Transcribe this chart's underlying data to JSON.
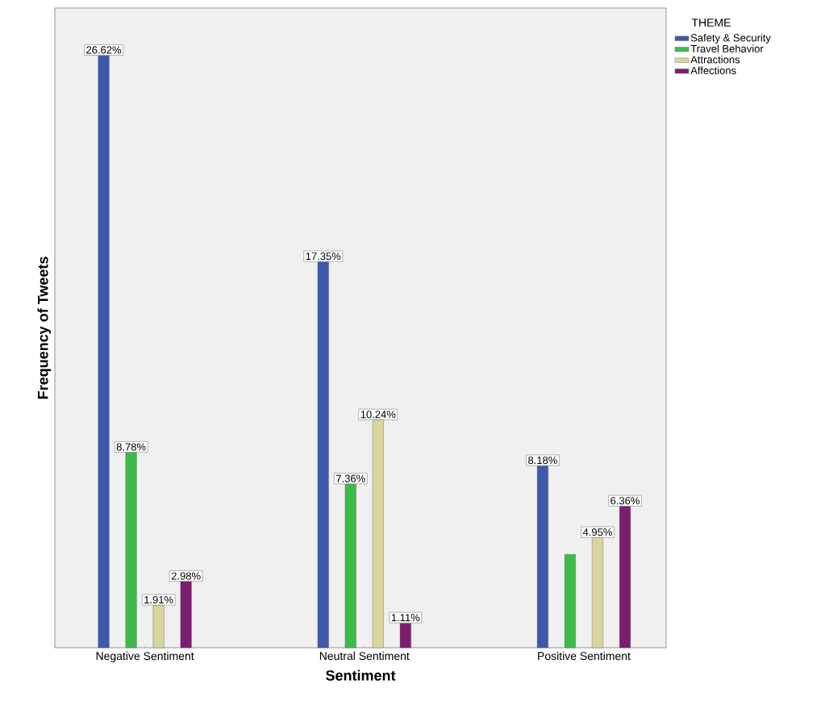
{
  "chart_data": {
    "type": "bar",
    "xlabel": "Sentiment",
    "ylabel": "Frequency of Tweets",
    "legend_title": "THEME",
    "legend": "top right",
    "tick_labels": "x",
    "categories": [
      "Negative Sentiment",
      "Neutral Sentiment",
      "Positive Sentiment"
    ],
    "series": [
      {
        "name": "Safety & Security",
        "color": "#3e58ac",
        "values": [
          26.62,
          17.35,
          8.18
        ],
        "value_labels": [
          "26.62%",
          "17.35%",
          "8.18%"
        ]
      },
      {
        "name": "Travel Behavior",
        "color": "#3dbb4a",
        "values": [
          8.78,
          7.36,
          4.2
        ],
        "value_labels": [
          "8.78%",
          "7.36%",
          null
        ]
      },
      {
        "name": "Attractions",
        "color": "#d8d59d",
        "values": [
          1.91,
          10.24,
          4.95
        ],
        "value_labels": [
          "1.91%",
          "10.24%",
          "4.95%"
        ]
      },
      {
        "name": "Affections",
        "color": "#7b1e6f",
        "values": [
          2.98,
          1.11,
          6.36
        ],
        "value_labels": [
          "2.98%",
          "1.11%",
          "6.36%"
        ]
      }
    ]
  }
}
